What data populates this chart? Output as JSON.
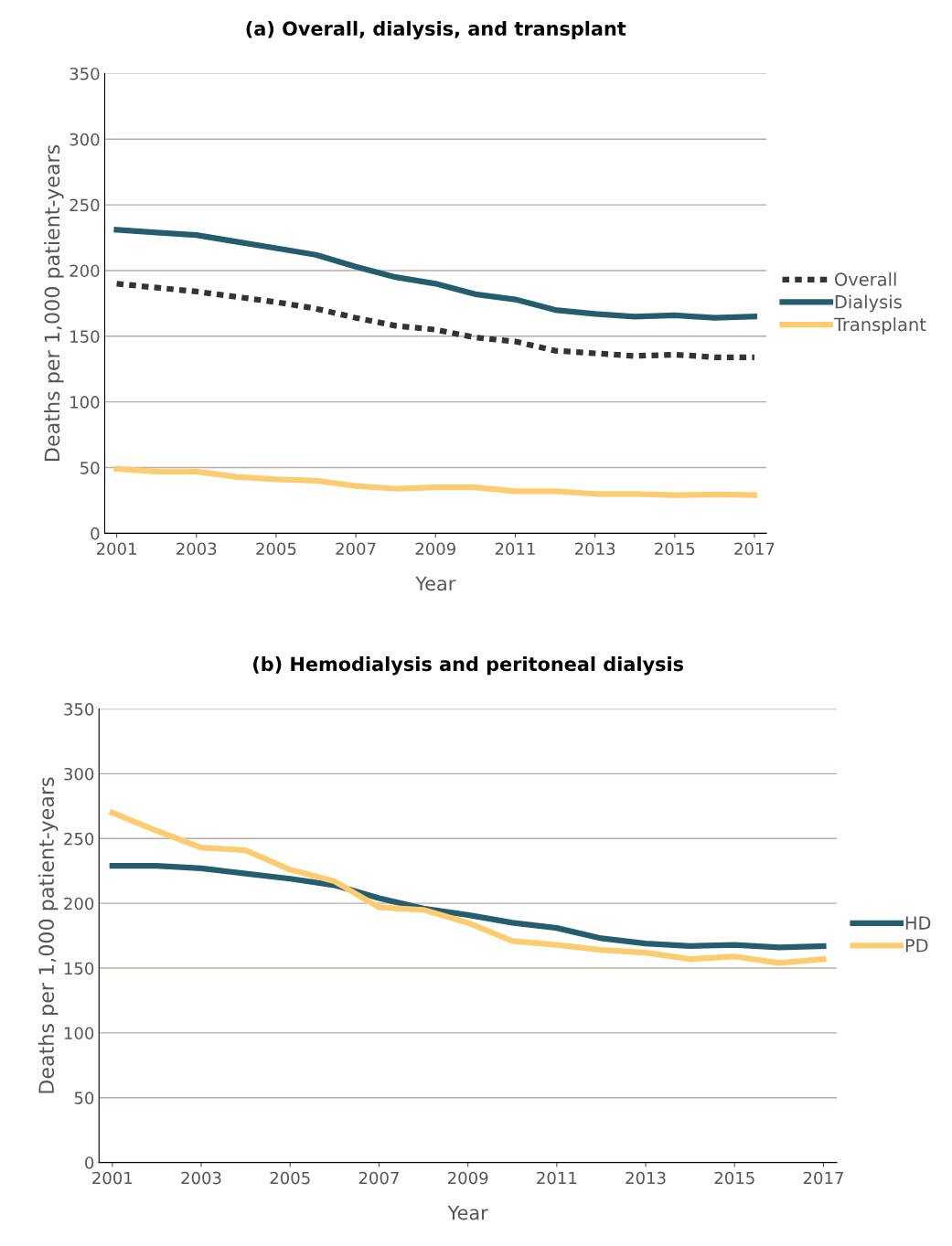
{
  "chart_data": [
    {
      "type": "line",
      "title": "(a) Overall, dialysis, and transplant",
      "xlabel": "Year",
      "ylabel": "Deaths per 1,000 patient-years",
      "x": [
        2001,
        2002,
        2003,
        2004,
        2005,
        2006,
        2007,
        2008,
        2009,
        2010,
        2011,
        2012,
        2013,
        2014,
        2015,
        2016,
        2017
      ],
      "series": [
        {
          "name": "Overall",
          "color": "#333333",
          "line_style": "dotted",
          "values": [
            190,
            187,
            184,
            180,
            176,
            171,
            164,
            158,
            155,
            149,
            146,
            139,
            137,
            135,
            136,
            134,
            134
          ]
        },
        {
          "name": "Dialysis",
          "color": "#235d6e",
          "values": [
            231,
            229,
            227,
            222,
            217,
            212,
            203,
            195,
            190,
            182,
            178,
            170,
            167,
            165,
            166,
            164,
            165
          ]
        },
        {
          "name": "Transplant",
          "color": "#fdcb72",
          "values": [
            49,
            47,
            47,
            43,
            41,
            40,
            36,
            34,
            35,
            35,
            32,
            32,
            30,
            30,
            29,
            29.5,
            29
          ]
        }
      ],
      "xlim": [
        2000.7,
        2017.3
      ],
      "xticks": [
        2001,
        2003,
        2005,
        2007,
        2009,
        2011,
        2013,
        2015,
        2017
      ],
      "ylim": [
        0,
        350
      ],
      "yticks": [
        0,
        50,
        100,
        150,
        200,
        250,
        300,
        350
      ],
      "grid": "y",
      "legend": "right"
    },
    {
      "type": "line",
      "title": "(b) Hemodialysis and peritoneal dialysis",
      "xlabel": "Year",
      "ylabel": "Deaths per 1,000 patient-years",
      "x": [
        2001,
        2002,
        2003,
        2004,
        2005,
        2006,
        2007,
        2008,
        2009,
        2010,
        2011,
        2012,
        2013,
        2014,
        2015,
        2016,
        2017
      ],
      "series": [
        {
          "name": "HD",
          "color": "#235d6e",
          "values": [
            229,
            229,
            227,
            223,
            219,
            214,
            204,
            196,
            191,
            185,
            181,
            173,
            169,
            167,
            168,
            166,
            167
          ]
        },
        {
          "name": "PD",
          "color": "#fdcb72",
          "values": [
            270,
            256,
            243,
            241,
            226,
            217,
            197,
            195,
            185,
            171,
            168,
            164,
            162,
            157,
            159,
            154,
            157
          ]
        }
      ],
      "xlim": [
        2000.7,
        2017.3
      ],
      "xticks": [
        2001,
        2003,
        2005,
        2007,
        2009,
        2011,
        2013,
        2015,
        2017
      ],
      "ylim": [
        0,
        350
      ],
      "yticks": [
        0,
        50,
        100,
        150,
        200,
        250,
        300,
        350
      ],
      "grid": "y",
      "legend": "right"
    }
  ]
}
